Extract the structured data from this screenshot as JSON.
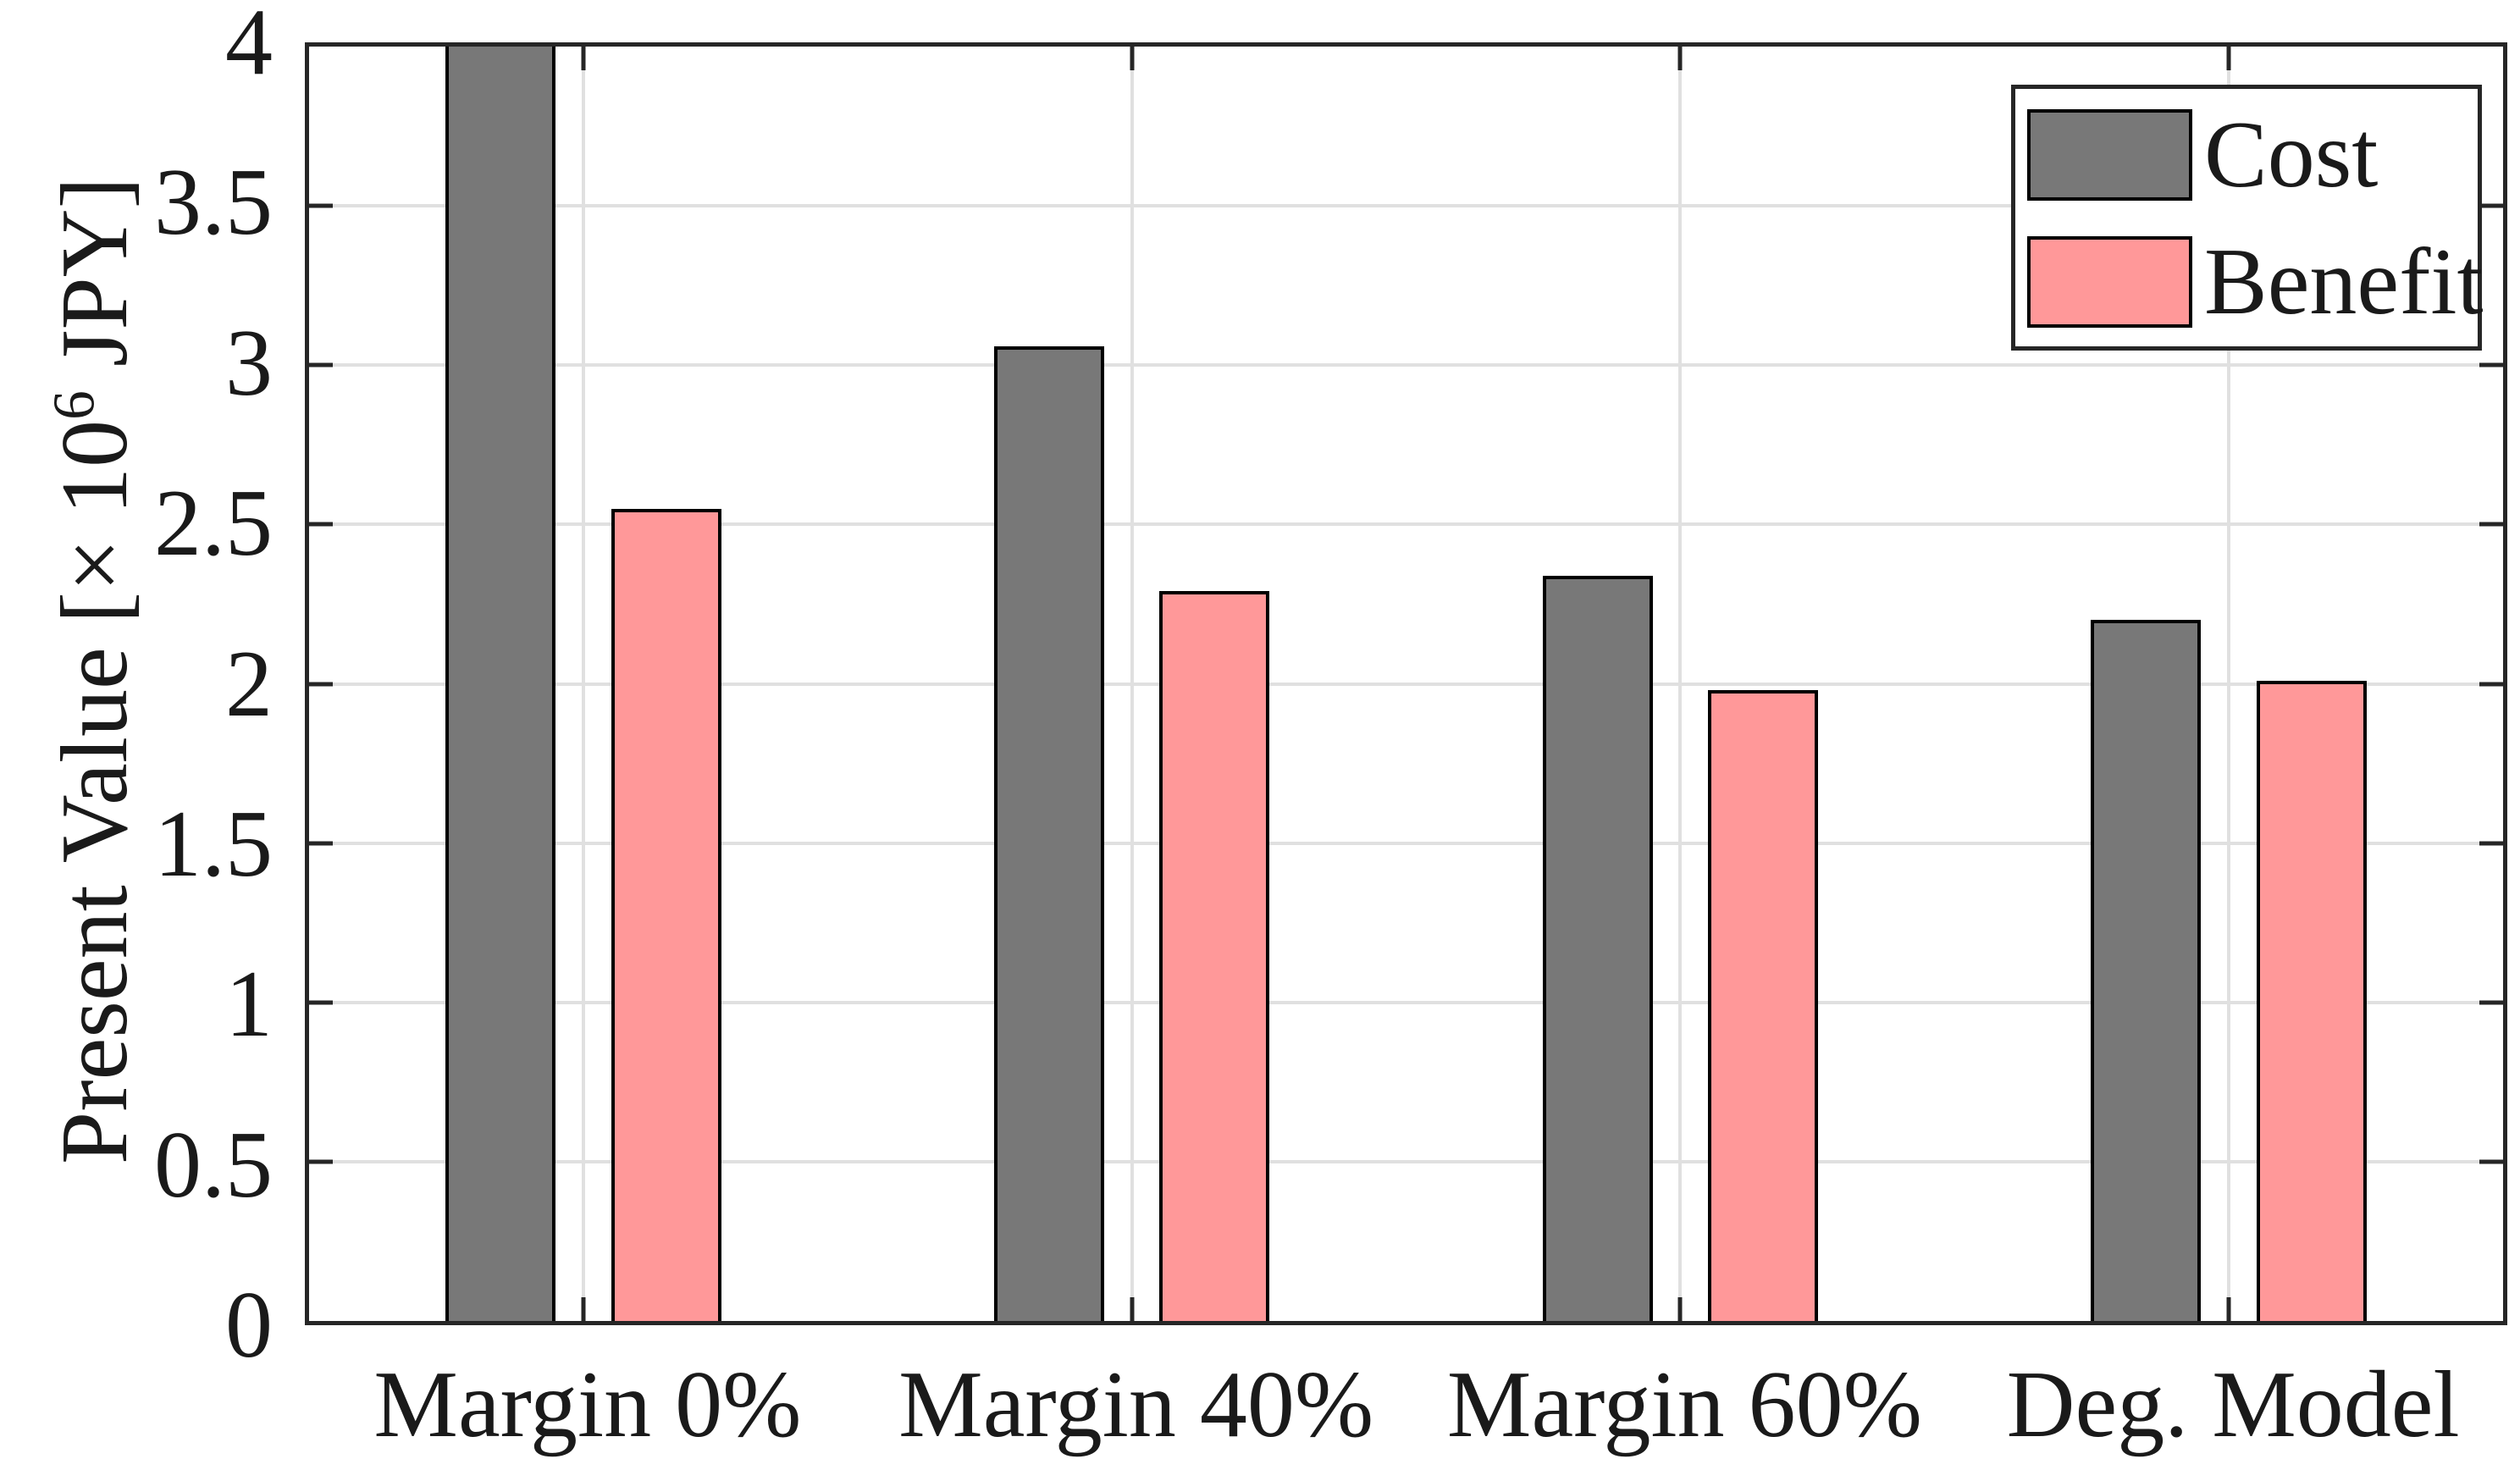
{
  "figure": {
    "background": "#ffffff",
    "axis_color": "#262626",
    "grid_color": "#e0e0e0",
    "text_color": "#1a1a1a",
    "bar_edge_color": "#000000"
  },
  "chart_data": {
    "type": "bar",
    "title": "",
    "categories": [
      "Margin 0%",
      "Margin 40%",
      "Margin 60%",
      "Deg. Model"
    ],
    "series": [
      {
        "name": "Cost",
        "color": "#787878",
        "values": [
          4.0,
          3.06,
          2.34,
          2.2
        ],
        "clipped": [
          true,
          false,
          false,
          false
        ]
      },
      {
        "name": "Benefit",
        "color": "#ff9899",
        "values": [
          2.55,
          2.29,
          1.98,
          2.01
        ],
        "clipped": [
          false,
          false,
          false,
          false
        ]
      }
    ],
    "ylabel": {
      "prefix": "Present Value [× 10",
      "sup": "6",
      "suffix": " JPY]"
    },
    "xlabel": "",
    "ylim": [
      0,
      4
    ],
    "yticks": [
      0,
      0.5,
      1,
      1.5,
      2,
      2.5,
      3,
      3.5,
      4
    ],
    "ytick_labels": [
      "0",
      "0.5",
      "1",
      "1.5",
      "2",
      "2.5",
      "3",
      "3.5",
      "4"
    ],
    "grid": true,
    "grid_axes": "both",
    "legend": {
      "position": "top-right",
      "entries": [
        "Cost",
        "Benefit"
      ]
    }
  }
}
